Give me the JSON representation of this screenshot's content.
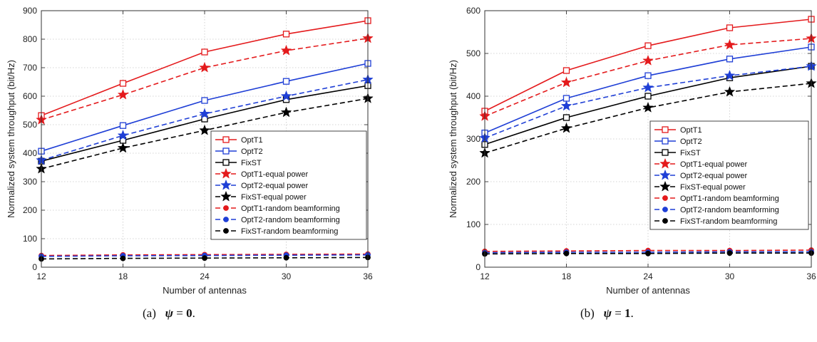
{
  "captions": [
    {
      "tag": "(a)",
      "symbol": "ψ",
      "equals": "=",
      "value": "0",
      "period": "."
    },
    {
      "tag": "(b)",
      "symbol": "ψ",
      "equals": "=",
      "value": "1",
      "period": "."
    }
  ],
  "styles": {
    "OptT1": {
      "color": "#e41a1c"
    },
    "OptT2": {
      "color": "#1f3fd6"
    },
    "FixST": {
      "color": "#000000"
    }
  },
  "chart_data": [
    {
      "type": "line",
      "xlabel": "Number of antennas",
      "ylabel": "Normalized system throughput (bit/Hz)",
      "x": [
        12,
        18,
        24,
        30,
        36
      ],
      "xlim": [
        12,
        36
      ],
      "ylim": [
        0,
        900
      ],
      "yticks": [
        0,
        100,
        200,
        300,
        400,
        500,
        600,
        700,
        800,
        900
      ],
      "grid": true,
      "legend_position": "right-middle",
      "series": [
        {
          "name": "OptT1",
          "group": "OptT1",
          "line": "solid",
          "marker": "square",
          "values": [
            532,
            645,
            755,
            818,
            865
          ]
        },
        {
          "name": "OptT2",
          "group": "OptT2",
          "line": "solid",
          "marker": "square",
          "values": [
            407,
            497,
            585,
            652,
            715
          ]
        },
        {
          "name": "FixST",
          "group": "FixST",
          "line": "solid",
          "marker": "square",
          "values": [
            372,
            445,
            520,
            588,
            637
          ]
        },
        {
          "name": "OptT1-equal power",
          "group": "OptT1",
          "line": "dashed",
          "marker": "star",
          "values": [
            517,
            605,
            700,
            760,
            803
          ]
        },
        {
          "name": "OptT2-equal power",
          "group": "OptT2",
          "line": "dashed",
          "marker": "star",
          "values": [
            375,
            462,
            538,
            600,
            658
          ]
        },
        {
          "name": "FixST-equal power",
          "group": "FixST",
          "line": "dashed",
          "marker": "star",
          "values": [
            345,
            418,
            480,
            543,
            592
          ]
        },
        {
          "name": "OptT1-random beamforming",
          "group": "OptT1",
          "line": "dashed",
          "marker": "dot",
          "values": [
            41,
            43,
            44,
            45,
            46
          ]
        },
        {
          "name": "OptT2-random beamforming",
          "group": "OptT2",
          "line": "dashed",
          "marker": "dot",
          "values": [
            38,
            40,
            41,
            42,
            43
          ]
        },
        {
          "name": "FixST-random beamforming",
          "group": "FixST",
          "line": "dashed",
          "marker": "dot",
          "values": [
            29,
            31,
            32,
            33,
            34
          ]
        }
      ]
    },
    {
      "type": "line",
      "xlabel": "Number of antennas",
      "ylabel": "Normalized system throughput (bit/Hz)",
      "x": [
        12,
        18,
        24,
        30,
        36
      ],
      "xlim": [
        12,
        36
      ],
      "ylim": [
        0,
        600
      ],
      "yticks": [
        0,
        100,
        200,
        300,
        400,
        500,
        600
      ],
      "grid": true,
      "legend_position": "right-middle",
      "series": [
        {
          "name": "OptT1",
          "group": "OptT1",
          "line": "solid",
          "marker": "square",
          "values": [
            365,
            460,
            518,
            560,
            580
          ]
        },
        {
          "name": "OptT2",
          "group": "OptT2",
          "line": "solid",
          "marker": "square",
          "values": [
            314,
            395,
            448,
            487,
            515
          ]
        },
        {
          "name": "FixST",
          "group": "FixST",
          "line": "solid",
          "marker": "square",
          "values": [
            287,
            350,
            400,
            443,
            470
          ]
        },
        {
          "name": "OptT1-equal power",
          "group": "OptT1",
          "line": "dashed",
          "marker": "star",
          "values": [
            353,
            432,
            483,
            520,
            535
          ]
        },
        {
          "name": "OptT2-equal power",
          "group": "OptT2",
          "line": "dashed",
          "marker": "star",
          "values": [
            302,
            377,
            420,
            448,
            470
          ]
        },
        {
          "name": "FixST-equal power",
          "group": "FixST",
          "line": "dashed",
          "marker": "star",
          "values": [
            267,
            325,
            373,
            410,
            430
          ]
        },
        {
          "name": "OptT1-random beamforming",
          "group": "OptT1",
          "line": "dashed",
          "marker": "dot",
          "values": [
            37,
            38,
            39,
            39,
            40
          ]
        },
        {
          "name": "OptT2-random beamforming",
          "group": "OptT2",
          "line": "dashed",
          "marker": "dot",
          "values": [
            34,
            35,
            35,
            36,
            36
          ]
        },
        {
          "name": "FixST-random beamforming",
          "group": "FixST",
          "line": "dashed",
          "marker": "dot",
          "values": [
            31,
            32,
            32,
            33,
            33
          ]
        }
      ]
    }
  ]
}
